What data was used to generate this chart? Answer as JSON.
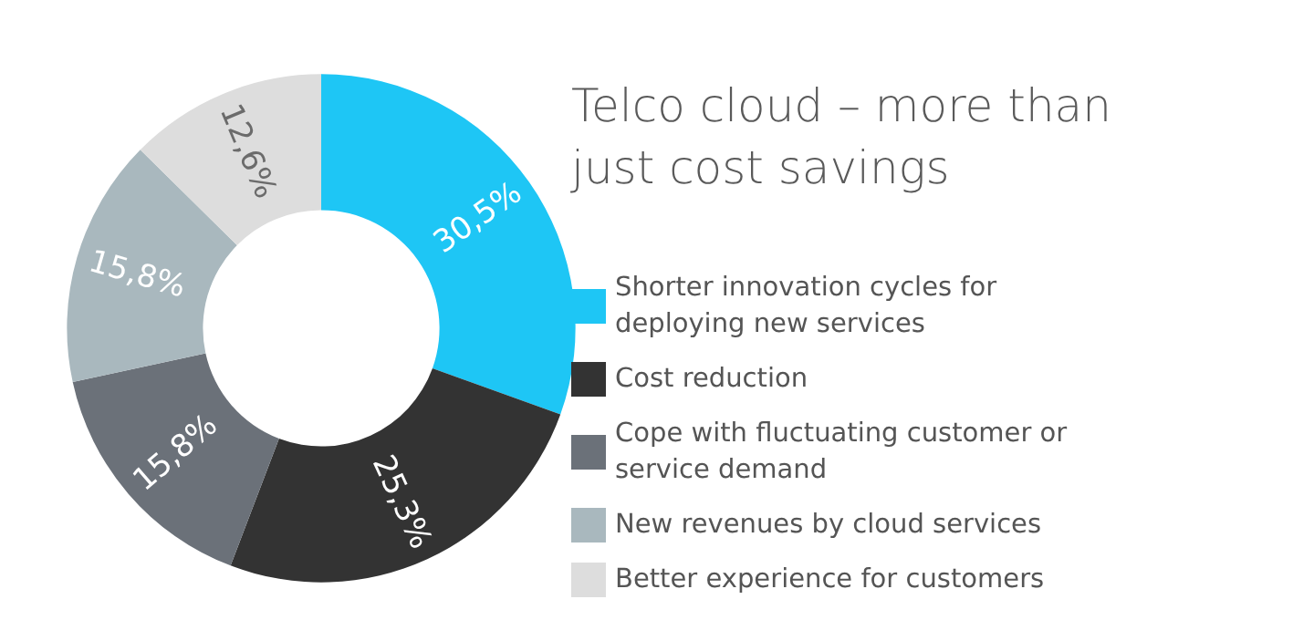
{
  "chart_data": {
    "type": "donut",
    "title": "Telco cloud – more than just cost savings",
    "categories": [
      "Shorter innovation cycles for deploying new services",
      "Cost reduction",
      "Cope with fluctuating customer or service demand",
      "New revenues by cloud services",
      "Better experience for customers"
    ],
    "values": [
      30.5,
      25.3,
      15.8,
      15.8,
      12.6
    ],
    "colors": [
      "#1ec6f5",
      "#333333",
      "#6b7179",
      "#a9b8be",
      "#dddddd"
    ],
    "value_labels": [
      "30,5%",
      "25,3%",
      "15,8%",
      "15,8%",
      "12,6%"
    ],
    "legend": "right"
  }
}
